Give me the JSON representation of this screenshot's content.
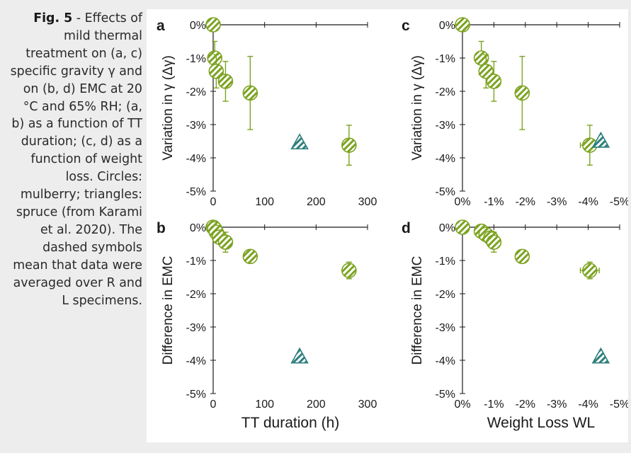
{
  "caption": {
    "fig_label": "Fig. 5",
    "text": " - Effects of mild thermal treatment on (a, c) specific gravity γ and on (b, d) EMC at 20 °C and 65% RH; (a, b) as a function of TT duration; (c, d) as a function of weight loss. Circles: mulberry; triangles: spruce (from Karami et al. 2020). The dashed symbols mean that data were averaged over R and L specimens."
  },
  "colors": {
    "mulberry_stroke": "#7ca321",
    "mulberry_fill": "#ffffff",
    "spruce_stroke": "#2e7f7c",
    "axis": "#1a1a1a"
  },
  "chart_data": [
    {
      "panel": "a",
      "type": "scatter",
      "ylabel": "Variation in γ (Δγ)",
      "xlabel": "",
      "x_ticks": [
        "0",
        "100",
        "200",
        "300"
      ],
      "y_ticks": [
        "0%",
        "-1%",
        "-2%",
        "-3%",
        "-4%",
        "-5%"
      ],
      "xlim": [
        0,
        300
      ],
      "ylim": [
        -5,
        0
      ],
      "series": [
        {
          "marker": "circle",
          "points": [
            {
              "x": 0,
              "y": 0,
              "yerr": 0
            },
            {
              "x": 3,
              "y": -1.0,
              "yerr": 0.5
            },
            {
              "x": 6,
              "y": -1.4,
              "yerr": 0.5
            },
            {
              "x": 24,
              "y": -1.7,
              "yerr": 0.6
            },
            {
              "x": 72,
              "y": -2.05,
              "yerr": 1.1
            },
            {
              "x": 264,
              "y": -3.62,
              "yerr": 0.6
            }
          ]
        },
        {
          "marker": "triangle",
          "points": [
            {
              "x": 168,
              "y": -3.55
            }
          ]
        }
      ]
    },
    {
      "panel": "b",
      "type": "scatter",
      "ylabel": "Difference in EMC",
      "xlabel": "TT duration (h)",
      "x_ticks": [
        "0",
        "100",
        "200",
        "300"
      ],
      "y_ticks": [
        "0%",
        "-1%",
        "-2%",
        "-3%",
        "-4%",
        "-5%"
      ],
      "xlim": [
        0,
        300
      ],
      "ylim": [
        -5,
        0
      ],
      "series": [
        {
          "marker": "circle",
          "points": [
            {
              "x": 0,
              "y": 0,
              "yerr": 0
            },
            {
              "x": 3,
              "y": -0.05,
              "yerr": 0.05
            },
            {
              "x": 6,
              "y": -0.15,
              "yerr": 0.1
            },
            {
              "x": 12,
              "y": -0.3,
              "yerr": 0.1
            },
            {
              "x": 24,
              "y": -0.45,
              "yerr": 0.3
            },
            {
              "x": 72,
              "y": -0.88,
              "yerr": 0.08
            },
            {
              "x": 264,
              "y": -1.3,
              "yerr": 0.25
            }
          ]
        },
        {
          "marker": "triangle",
          "points": [
            {
              "x": 168,
              "y": -3.9
            }
          ]
        }
      ]
    },
    {
      "panel": "c",
      "type": "scatter",
      "ylabel": "Variation in γ (Δγ)",
      "xlabel": "",
      "x_ticks": [
        "0%",
        "-1%",
        "-2%",
        "-3%",
        "-4%",
        "-5%"
      ],
      "y_ticks": [
        "0%",
        "-1%",
        "-2%",
        "-3%",
        "-4%",
        "-5%"
      ],
      "xlim": [
        0,
        -5
      ],
      "ylim": [
        -5,
        0
      ],
      "series": [
        {
          "marker": "circle",
          "points": [
            {
              "x": 0,
              "y": 0,
              "yerr": 0,
              "xerr": 0
            },
            {
              "x": -0.6,
              "y": -1.0,
              "yerr": 0.5,
              "xerr": 0
            },
            {
              "x": -0.75,
              "y": -1.4,
              "yerr": 0.5,
              "xerr": 0
            },
            {
              "x": -1.0,
              "y": -1.7,
              "yerr": 0.6,
              "xerr": 0
            },
            {
              "x": -1.9,
              "y": -2.05,
              "yerr": 1.1,
              "xerr": 0
            },
            {
              "x": -4.05,
              "y": -3.62,
              "yerr": 0.6,
              "xerr": 0.3
            }
          ]
        },
        {
          "marker": "triangle",
          "points": [
            {
              "x": -4.4,
              "y": -3.5,
              "xerr": 0.1
            }
          ]
        }
      ]
    },
    {
      "panel": "d",
      "type": "scatter",
      "ylabel": "Difference in EMC",
      "xlabel": "Weight Loss WL",
      "x_ticks": [
        "0%",
        "-1%",
        "-2%",
        "-3%",
        "-4%",
        "-5%"
      ],
      "y_ticks": [
        "0%",
        "-1%",
        "-2%",
        "-3%",
        "-4%",
        "-5%"
      ],
      "xlim": [
        0,
        -5
      ],
      "ylim": [
        -5,
        0
      ],
      "series": [
        {
          "marker": "circle",
          "points": [
            {
              "x": 0,
              "y": 0,
              "yerr": 0,
              "xerr": 0
            },
            {
              "x": -0.6,
              "y": -0.12,
              "yerr": 0.05,
              "xerr": 0
            },
            {
              "x": -0.75,
              "y": -0.22,
              "yerr": 0.1,
              "xerr": 0
            },
            {
              "x": -0.9,
              "y": -0.32,
              "yerr": 0.1,
              "xerr": 0
            },
            {
              "x": -1.0,
              "y": -0.45,
              "yerr": 0.3,
              "xerr": 0
            },
            {
              "x": -1.9,
              "y": -0.88,
              "yerr": 0.08,
              "xerr": 0
            },
            {
              "x": -4.05,
              "y": -1.3,
              "yerr": 0.25,
              "xerr": 0.3
            }
          ]
        },
        {
          "marker": "triangle",
          "points": [
            {
              "x": -4.4,
              "y": -3.9
            }
          ]
        }
      ]
    }
  ]
}
